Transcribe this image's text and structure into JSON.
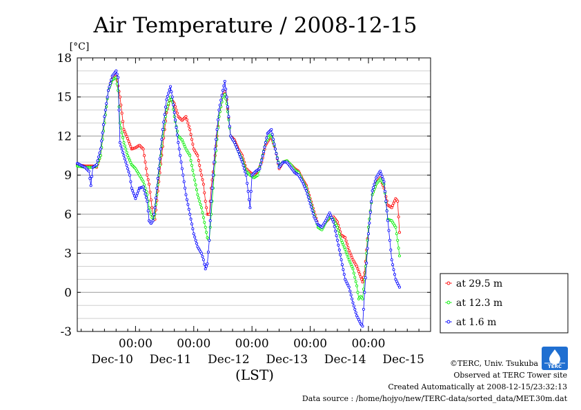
{
  "chart_data": {
    "type": "line",
    "title": "Air Temperature / 2008-12-15",
    "ylabel": "[°C]",
    "xlabel": "(LST)",
    "ylim": [
      -3,
      18
    ],
    "yticks": [
      -3,
      0,
      3,
      6,
      9,
      12,
      15,
      18
    ],
    "xlim_hours": [
      -14,
      168
    ],
    "xticks": [
      {
        "hour": 16,
        "time": "00:00",
        "date": "Dec-10"
      },
      {
        "hour": 46,
        "time": "00:00",
        "date": "Dec-11"
      },
      {
        "hour": 76,
        "time": "00:00",
        "date": "Dec-12"
      },
      {
        "hour": 106,
        "time": "00:00",
        "date": "Dec-13"
      },
      {
        "hour": 136,
        "time": "00:00",
        "date": "Dec-14"
      },
      {
        "hour": null,
        "time": "",
        "date": "Dec-15"
      }
    ],
    "grid": true,
    "legend_position": "right",
    "series": [
      {
        "name": "at 29.5 m",
        "color": "#ff0000",
        "points": [
          [
            -14,
            9.8
          ],
          [
            -10,
            9.7
          ],
          [
            -6,
            9.7
          ],
          [
            -4,
            9.6
          ],
          [
            -2,
            10.5
          ],
          [
            0,
            13.0
          ],
          [
            2,
            15.5
          ],
          [
            4,
            16.4
          ],
          [
            6,
            16.7
          ],
          [
            8,
            15.0
          ],
          [
            10,
            12.5
          ],
          [
            12,
            11.8
          ],
          [
            14,
            11.0
          ],
          [
            16,
            11.1
          ],
          [
            18,
            11.3
          ],
          [
            20,
            11.0
          ],
          [
            22,
            9.0
          ],
          [
            23,
            8.3
          ],
          [
            25,
            5.9
          ],
          [
            26,
            5.6
          ],
          [
            28,
            8.5
          ],
          [
            30,
            11.2
          ],
          [
            32,
            13.8
          ],
          [
            34,
            15.0
          ],
          [
            35,
            14.7
          ],
          [
            36,
            14.5
          ],
          [
            38,
            13.5
          ],
          [
            40,
            13.2
          ],
          [
            42,
            13.5
          ],
          [
            44,
            12.5
          ],
          [
            46,
            11.0
          ],
          [
            48,
            10.5
          ],
          [
            50,
            9.0
          ],
          [
            51,
            8.3
          ],
          [
            52,
            7.0
          ],
          [
            53,
            6.0
          ],
          [
            54,
            6.0
          ],
          [
            55,
            8.0
          ],
          [
            57,
            10.5
          ],
          [
            59,
            13.5
          ],
          [
            61,
            15.0
          ],
          [
            62,
            15.4
          ],
          [
            63,
            14.8
          ],
          [
            65,
            12.0
          ],
          [
            67,
            11.7
          ],
          [
            69,
            11.0
          ],
          [
            71,
            10.5
          ],
          [
            73,
            9.5
          ],
          [
            75,
            9.2
          ],
          [
            77,
            9.0
          ],
          [
            79,
            9.3
          ],
          [
            81,
            10.0
          ],
          [
            83,
            11.3
          ],
          [
            85,
            11.8
          ],
          [
            86,
            11.9
          ],
          [
            88,
            11.0
          ],
          [
            90,
            9.5
          ],
          [
            92,
            10.0
          ],
          [
            94,
            10.1
          ],
          [
            96,
            9.8
          ],
          [
            98,
            9.5
          ],
          [
            100,
            9.3
          ],
          [
            102,
            8.7
          ],
          [
            104,
            8.2
          ],
          [
            106,
            7.2
          ],
          [
            108,
            6.2
          ],
          [
            110,
            5.2
          ],
          [
            112,
            4.9
          ],
          [
            114,
            5.4
          ],
          [
            116,
            5.7
          ],
          [
            118,
            5.8
          ],
          [
            120,
            5.4
          ],
          [
            122,
            4.4
          ],
          [
            124,
            4.2
          ],
          [
            126,
            3.2
          ],
          [
            128,
            2.5
          ],
          [
            130,
            2.0
          ],
          [
            132,
            1.2
          ],
          [
            133,
            0.8
          ],
          [
            134,
            1.5
          ],
          [
            136,
            5.0
          ],
          [
            138,
            7.5
          ],
          [
            140,
            8.4
          ],
          [
            142,
            8.8
          ],
          [
            144,
            8.0
          ],
          [
            146,
            6.7
          ],
          [
            148,
            6.5
          ],
          [
            150,
            7.2
          ],
          [
            151,
            7.0
          ],
          [
            152,
            4.6
          ]
        ]
      },
      {
        "name": "at 12.3 m",
        "color": "#00ee00",
        "points": [
          [
            -14,
            9.7
          ],
          [
            -10,
            9.6
          ],
          [
            -6,
            9.6
          ],
          [
            -4,
            9.7
          ],
          [
            -2,
            10.5
          ],
          [
            0,
            13.0
          ],
          [
            2,
            15.5
          ],
          [
            4,
            16.3
          ],
          [
            6,
            16.5
          ],
          [
            7,
            15.5
          ],
          [
            8,
            13.0
          ],
          [
            10,
            11.5
          ],
          [
            12,
            10.5
          ],
          [
            14,
            9.8
          ],
          [
            16,
            9.5
          ],
          [
            18,
            9.0
          ],
          [
            20,
            8.5
          ],
          [
            22,
            7.5
          ],
          [
            23,
            6.5
          ],
          [
            25,
            5.5
          ],
          [
            26,
            6.0
          ],
          [
            28,
            9.0
          ],
          [
            30,
            12.0
          ],
          [
            32,
            14.0
          ],
          [
            34,
            15.0
          ],
          [
            35,
            14.6
          ],
          [
            36,
            13.5
          ],
          [
            38,
            12.0
          ],
          [
            40,
            11.7
          ],
          [
            42,
            11.0
          ],
          [
            44,
            10.5
          ],
          [
            46,
            9.0
          ],
          [
            48,
            7.5
          ],
          [
            50,
            6.5
          ],
          [
            52,
            5.0
          ],
          [
            53,
            4.2
          ],
          [
            54,
            4.0
          ],
          [
            55,
            6.0
          ],
          [
            57,
            10.0
          ],
          [
            59,
            13.5
          ],
          [
            61,
            15.0
          ],
          [
            62,
            15.2
          ],
          [
            63,
            14.5
          ],
          [
            65,
            12.0
          ],
          [
            67,
            11.5
          ],
          [
            69,
            10.8
          ],
          [
            71,
            10.2
          ],
          [
            73,
            9.3
          ],
          [
            75,
            9.0
          ],
          [
            77,
            8.8
          ],
          [
            79,
            9.0
          ],
          [
            81,
            10.2
          ],
          [
            83,
            11.5
          ],
          [
            85,
            12.0
          ],
          [
            86,
            12.1
          ],
          [
            88,
            11.0
          ],
          [
            90,
            9.7
          ],
          [
            92,
            10.0
          ],
          [
            94,
            10.1
          ],
          [
            96,
            9.8
          ],
          [
            98,
            9.4
          ],
          [
            100,
            9.2
          ],
          [
            102,
            8.6
          ],
          [
            104,
            8.0
          ],
          [
            106,
            7.0
          ],
          [
            108,
            6.0
          ],
          [
            110,
            5.0
          ],
          [
            112,
            4.8
          ],
          [
            114,
            5.4
          ],
          [
            116,
            5.8
          ],
          [
            118,
            5.6
          ],
          [
            120,
            5.0
          ],
          [
            122,
            4.0
          ],
          [
            124,
            3.3
          ],
          [
            126,
            2.5
          ],
          [
            128,
            1.8
          ],
          [
            130,
            0.5
          ],
          [
            131,
            -0.5
          ],
          [
            132,
            -0.3
          ],
          [
            133,
            -0.5
          ],
          [
            134,
            1.0
          ],
          [
            136,
            5.0
          ],
          [
            138,
            7.5
          ],
          [
            140,
            8.3
          ],
          [
            142,
            8.7
          ],
          [
            144,
            8.3
          ],
          [
            146,
            5.6
          ],
          [
            148,
            5.5
          ],
          [
            150,
            5.0
          ],
          [
            151,
            4.0
          ],
          [
            152,
            2.8
          ]
        ]
      },
      {
        "name": "at 1.6 m",
        "color": "#0000ff",
        "points": [
          [
            -14,
            9.9
          ],
          [
            -10,
            9.6
          ],
          [
            -8,
            9.3
          ],
          [
            -7,
            8.2
          ],
          [
            -6,
            9.6
          ],
          [
            -4,
            9.8
          ],
          [
            -2,
            11.0
          ],
          [
            0,
            13.5
          ],
          [
            2,
            15.5
          ],
          [
            4,
            16.6
          ],
          [
            6,
            17.0
          ],
          [
            7,
            16.5
          ],
          [
            8,
            11.5
          ],
          [
            10,
            10.5
          ],
          [
            12,
            9.5
          ],
          [
            13,
            9.0
          ],
          [
            14,
            8.0
          ],
          [
            16,
            7.2
          ],
          [
            18,
            8.0
          ],
          [
            20,
            8.1
          ],
          [
            22,
            7.0
          ],
          [
            23,
            5.5
          ],
          [
            24,
            5.3
          ],
          [
            25,
            5.5
          ],
          [
            26,
            6.5
          ],
          [
            28,
            9.5
          ],
          [
            30,
            12.5
          ],
          [
            32,
            14.8
          ],
          [
            34,
            15.8
          ],
          [
            35,
            15.0
          ],
          [
            36,
            13.8
          ],
          [
            38,
            11.5
          ],
          [
            40,
            9.5
          ],
          [
            42,
            7.5
          ],
          [
            44,
            6.0
          ],
          [
            46,
            4.5
          ],
          [
            48,
            3.5
          ],
          [
            50,
            3.0
          ],
          [
            51,
            2.5
          ],
          [
            52,
            1.8
          ],
          [
            53,
            2.2
          ],
          [
            54,
            4.0
          ],
          [
            55,
            7.0
          ],
          [
            57,
            11.0
          ],
          [
            59,
            14.0
          ],
          [
            61,
            15.5
          ],
          [
            62,
            16.2
          ],
          [
            63,
            15.0
          ],
          [
            65,
            12.0
          ],
          [
            67,
            11.5
          ],
          [
            69,
            10.8
          ],
          [
            71,
            10.0
          ],
          [
            73,
            9.0
          ],
          [
            75,
            6.5
          ],
          [
            76,
            9.0
          ],
          [
            78,
            9.3
          ],
          [
            80,
            9.5
          ],
          [
            82,
            10.8
          ],
          [
            84,
            12.2
          ],
          [
            86,
            12.5
          ],
          [
            88,
            11.0
          ],
          [
            90,
            9.6
          ],
          [
            92,
            10.0
          ],
          [
            94,
            10.0
          ],
          [
            96,
            9.6
          ],
          [
            98,
            9.2
          ],
          [
            100,
            9.0
          ],
          [
            102,
            8.5
          ],
          [
            104,
            7.8
          ],
          [
            106,
            6.8
          ],
          [
            108,
            5.8
          ],
          [
            110,
            5.2
          ],
          [
            112,
            5.0
          ],
          [
            114,
            5.5
          ],
          [
            116,
            6.1
          ],
          [
            118,
            5.4
          ],
          [
            120,
            4.0
          ],
          [
            122,
            2.5
          ],
          [
            124,
            1.0
          ],
          [
            126,
            0.4
          ],
          [
            128,
            -0.8
          ],
          [
            130,
            -1.8
          ],
          [
            132,
            -2.4
          ],
          [
            133,
            -2.6
          ],
          [
            134,
            0.0
          ],
          [
            136,
            4.5
          ],
          [
            138,
            7.8
          ],
          [
            140,
            8.8
          ],
          [
            142,
            9.3
          ],
          [
            144,
            8.5
          ],
          [
            146,
            5.5
          ],
          [
            148,
            2.5
          ],
          [
            150,
            1.0
          ],
          [
            151,
            0.7
          ],
          [
            152,
            0.4
          ]
        ]
      }
    ]
  },
  "credits": {
    "copyright": "©TERC, Univ. Tsukuba",
    "observed": "Observed at TERC Tower site",
    "created": "Created Automatically at 2008-12-15/23:32:13",
    "source": "Data source : /home/hojyo/new/TERC-data/sorted_data/MET.30m.dat",
    "logo_text": "TERC"
  }
}
